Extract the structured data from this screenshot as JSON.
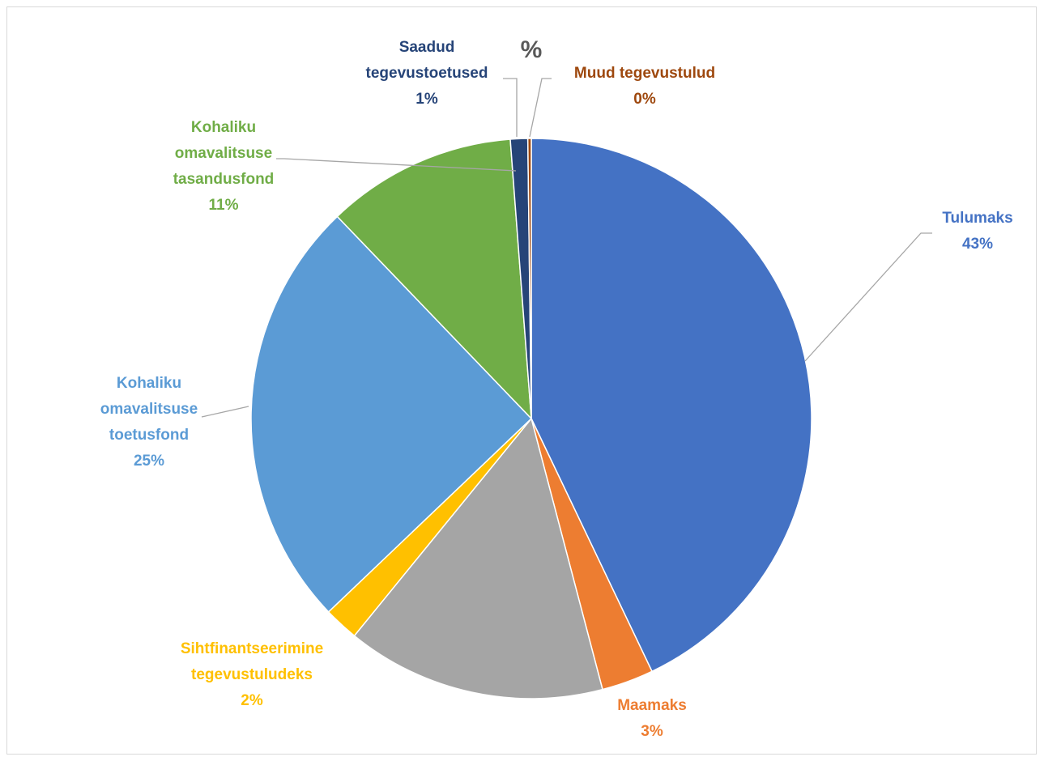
{
  "chart_data": {
    "type": "pie",
    "title": "%",
    "start_angle_deg": 0,
    "direction": "clockwise",
    "slices": [
      {
        "name": "Tulumaks",
        "value": 43,
        "label": "43%",
        "color": "#4472C4",
        "label_lines": [
          "Tulumaks",
          "43%"
        ]
      },
      {
        "name": "Maamaks",
        "value": 3,
        "label": "3%",
        "color": "#ED7D31",
        "label_lines": [
          "Maamaks",
          "3%"
        ]
      },
      {
        "name": "",
        "value": 15,
        "label": "",
        "color": "#A5A5A5",
        "label_lines": []
      },
      {
        "name": "Sihtfinantseerimine tegevustuludeks",
        "value": 2,
        "label": "2%",
        "color": "#FFC000",
        "label_lines": [
          "Sihtfinantseerimine",
          "tegevustuludeks",
          "2%"
        ]
      },
      {
        "name": "Kohaliku omavalitsuse toetusfond",
        "value": 25,
        "label": "25%",
        "color": "#5B9BD5",
        "label_lines": [
          "Kohaliku",
          "omavalitsuse",
          "toetusfond",
          "25%"
        ]
      },
      {
        "name": "Kohaliku omavalitsuse tasandusfond",
        "value": 11,
        "label": "11%",
        "color": "#70AD47",
        "label_lines": [
          "Kohaliku",
          "omavalitsuse",
          "tasandusfond",
          "11%"
        ]
      },
      {
        "name": "Saadud tegevustoetused",
        "value": 1,
        "label": "1%",
        "color": "#264478",
        "label_lines": [
          "Saadud",
          "tegevustoetused",
          "1%"
        ]
      },
      {
        "name": "Muud tegevustulud",
        "value": 0.2,
        "label": "0%",
        "color": "#9E480E",
        "label_lines": [
          "Muud tegevustulud",
          "0%"
        ]
      }
    ],
    "legend": "none",
    "label_text_colors": [
      "#4472C4",
      "#ED7D31",
      "#A5A5A5",
      "#FFC000",
      "#5B9BD5",
      "#70AD47",
      "#264478",
      "#9E480E"
    ]
  }
}
